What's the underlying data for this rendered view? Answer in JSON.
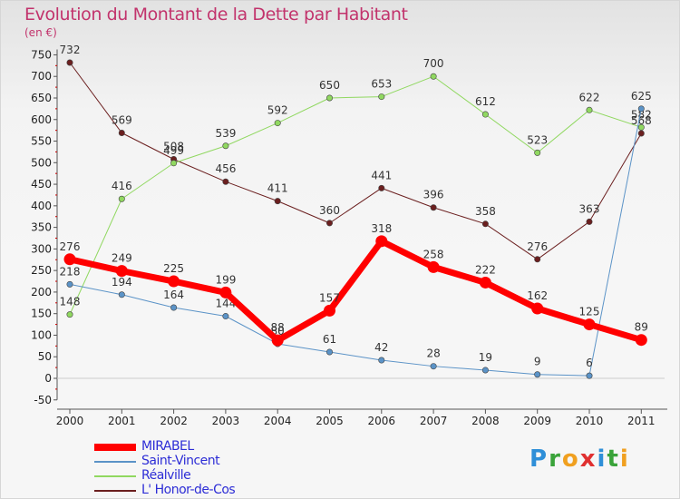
{
  "title": "Evolution du Montant de la Dette par Habitant",
  "unit": "(en €)",
  "logo": {
    "text": "Proxiti",
    "letters": [
      {
        "ch": "P",
        "color": "#2f8fd8"
      },
      {
        "ch": "r",
        "color": "#3aa33a"
      },
      {
        "ch": "o",
        "color": "#f0a020"
      },
      {
        "ch": "x",
        "color": "#e03030"
      },
      {
        "ch": "i",
        "color": "#2f8fd8"
      },
      {
        "ch": "t",
        "color": "#3aa33a"
      },
      {
        "ch": "i",
        "color": "#f0a020"
      }
    ]
  },
  "chart_data": {
    "type": "line",
    "categories": [
      "2000",
      "2001",
      "2002",
      "2003",
      "2004",
      "2005",
      "2006",
      "2007",
      "2008",
      "2009",
      "2010",
      "2011"
    ],
    "ylim": [
      -50,
      750
    ],
    "yticks": [
      -50,
      0,
      50,
      100,
      150,
      200,
      250,
      300,
      350,
      400,
      450,
      500,
      550,
      600,
      650,
      700,
      750
    ],
    "grid": false,
    "legend_position": "bottom-left",
    "series": [
      {
        "name": "L' Honor-de-Cos",
        "color": "#6b1f1f",
        "width": 1,
        "values": [
          732,
          569,
          508,
          456,
          411,
          360,
          441,
          396,
          358,
          276,
          363,
          568
        ]
      },
      {
        "name": "Réalville",
        "color": "#90d860",
        "width": 1,
        "values": [
          148,
          416,
          499,
          539,
          592,
          650,
          653,
          700,
          612,
          523,
          622,
          582
        ]
      },
      {
        "name": "Saint-Vincent",
        "color": "#5b93c7",
        "width": 1,
        "values": [
          218,
          194,
          164,
          144,
          80,
          61,
          42,
          28,
          19,
          9,
          6,
          625
        ]
      },
      {
        "name": "MIRABEL",
        "color": "#ff0000",
        "width": 7,
        "values": [
          276,
          249,
          225,
          199,
          88,
          157,
          318,
          258,
          222,
          162,
          125,
          89
        ]
      }
    ],
    "legend_order": [
      "MIRABEL",
      "Saint-Vincent",
      "Réalville",
      "L' Honor-de-Cos"
    ]
  }
}
